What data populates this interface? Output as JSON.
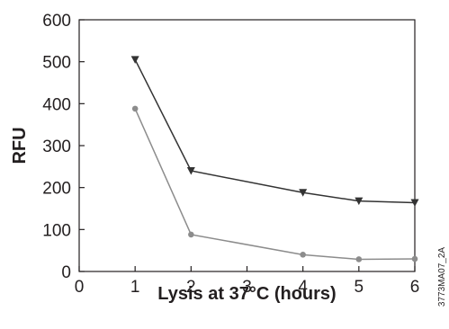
{
  "chart_data": {
    "type": "line",
    "xlabel": "Lysis at 37°C (hours)",
    "ylabel": "RFU",
    "xlim": [
      0,
      6
    ],
    "ylim": [
      0,
      600
    ],
    "xticks": [
      0,
      1,
      2,
      3,
      4,
      5,
      6
    ],
    "yticks": [
      0,
      100,
      200,
      300,
      400,
      500,
      600
    ],
    "grid": false,
    "legend": "none",
    "series": [
      {
        "marker": "triangle-down",
        "color": "#333333",
        "x": [
          1,
          2,
          4,
          5,
          6
        ],
        "y": [
          505,
          240,
          188,
          168,
          164
        ]
      },
      {
        "marker": "circle",
        "color": "#8c8c8c",
        "x": [
          1,
          2,
          4,
          5,
          6
        ],
        "y": [
          388,
          88,
          40,
          29,
          30
        ]
      }
    ]
  },
  "figure_code": "3773MA07_2A"
}
